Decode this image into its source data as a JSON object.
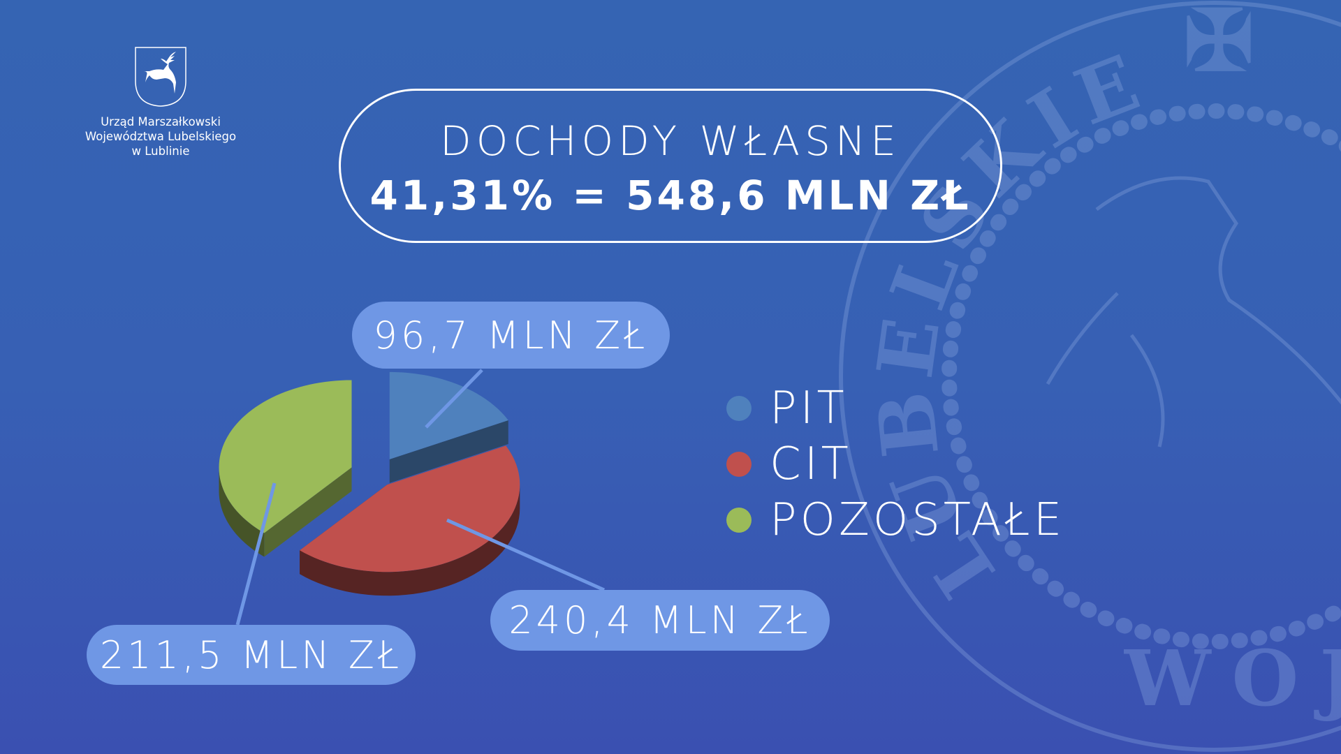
{
  "logo": {
    "lines": [
      "Urząd Marszałkowski",
      "Województwa Lubelskiego",
      "w Lublinie"
    ]
  },
  "seal": {
    "text": "LUBELSKIE",
    "text_bottom": "WOJ"
  },
  "title": {
    "line1": "DOCHODY WŁASNE",
    "line2": "41,31% = 548,6 MLN ZŁ"
  },
  "chart_data": {
    "type": "pie",
    "style": "3d-exploded",
    "unit": "MLN ZŁ",
    "categories": [
      "PIT",
      "CIT",
      "POZOSTAŁE"
    ],
    "values": [
      96.7,
      240.4,
      211.5
    ],
    "data_labels": [
      "96,7 MLN ZŁ",
      "240,4 MLN ZŁ",
      "211,5 MLN ZŁ"
    ],
    "colors": [
      "#4f81bd",
      "#c0504d",
      "#9bbb59"
    ],
    "legend_placement": "right"
  },
  "colors": {
    "label_pill": "#6f97e5",
    "leader_line": "#6f97e5"
  }
}
